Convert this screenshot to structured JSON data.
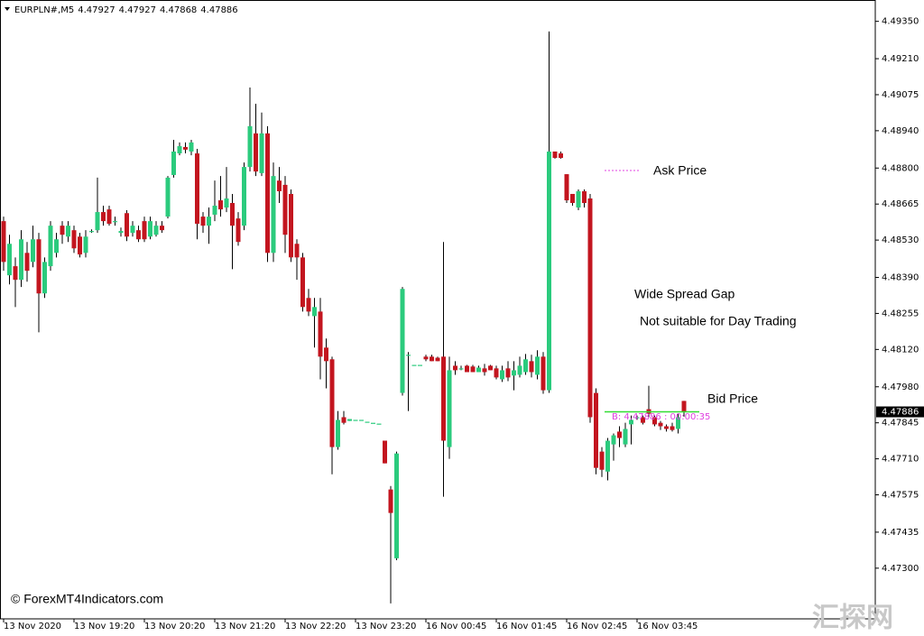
{
  "chart_data": {
    "type": "candlestick",
    "symbol": "EURPLN#,M5",
    "up_color": "#2bcb7d",
    "down_color": "#c3151f",
    "wick_color": "#000000",
    "ask_line": 4.48791,
    "ask_color": "#e040e0",
    "bid_color": "#33dd33",
    "annotations": [
      "Ask Price",
      "Wide Spread Gap",
      "Not suitable for Day Trading",
      "Bid Price"
    ],
    "timer_label": "B: 4.47886 : 00:00:35",
    "watermark": "© ForexMT4Indicators.com",
    "site_mark": "汇探网",
    "ylim": [
      4.4711,
      4.4943
    ],
    "yticks": [
      {
        "value": 4.4935,
        "label": "4.49350"
      },
      {
        "value": 4.4921,
        "label": "4.49210"
      },
      {
        "value": 4.49075,
        "label": "4.49075"
      },
      {
        "value": 4.4894,
        "label": "4.48940"
      },
      {
        "value": 4.488,
        "label": "4.48800"
      },
      {
        "value": 4.48665,
        "label": "4.48665"
      },
      {
        "value": 4.4853,
        "label": "4.48530"
      },
      {
        "value": 4.4839,
        "label": "4.48390"
      },
      {
        "value": 4.48255,
        "label": "4.48255"
      },
      {
        "value": 4.4812,
        "label": "4.48120"
      },
      {
        "value": 4.4798,
        "label": "4.47980"
      },
      {
        "value": 4.47845,
        "label": "4.47845"
      },
      {
        "value": 4.4771,
        "label": "4.47710"
      },
      {
        "value": 4.47575,
        "label": "4.47575"
      },
      {
        "value": 4.47435,
        "label": "4.47435"
      },
      {
        "value": 4.473,
        "label": "4.47300"
      }
    ],
    "categories": [
      "13 Nov 2020",
      null,
      null,
      null,
      null,
      null,
      null,
      null,
      null,
      null,
      null,
      null,
      "13 Nov 19:20",
      null,
      null,
      null,
      null,
      null,
      null,
      null,
      null,
      null,
      null,
      null,
      "13 Nov 20:20",
      null,
      null,
      null,
      null,
      null,
      null,
      null,
      null,
      null,
      null,
      null,
      "13 Nov 21:20",
      null,
      null,
      null,
      null,
      null,
      null,
      null,
      null,
      null,
      null,
      null,
      "13 Nov 22:20",
      null,
      null,
      null,
      null,
      null,
      null,
      null,
      null,
      null,
      null,
      null,
      "13 Nov 23:20",
      null,
      null,
      null,
      null,
      null,
      null,
      null,
      null,
      null,
      null,
      null,
      "16 Nov 00:45",
      null,
      null,
      null,
      null,
      null,
      null,
      null,
      null,
      null,
      null,
      null,
      "16 Nov 01:45",
      null,
      null,
      null,
      null,
      null,
      null,
      null,
      null,
      null,
      null,
      null,
      "16 Nov 02:45",
      null,
      null,
      null,
      null,
      null,
      null,
      null,
      null,
      null,
      null,
      null,
      "16 Nov 03:45",
      null,
      null,
      null,
      null,
      null,
      null,
      null,
      null
    ],
    "open": [
      4.48601,
      4.48398,
      4.48432,
      4.48381,
      4.48482,
      4.48448,
      4.48533,
      4.4833,
      4.48432,
      4.48482,
      4.48584,
      4.48543,
      4.48567,
      4.48543,
      4.48482,
      4.48564,
      4.48567,
      4.48635,
      4.48645,
      4.48601,
      4.48557,
      4.48631,
      4.48557,
      4.48567,
      4.48601,
      4.48543,
      4.4855,
      4.48584,
      4.48618,
      4.48774,
      4.48855,
      4.48879,
      4.48862,
      4.48855,
      4.48618,
      4.48584,
      4.48625,
      4.48679,
      4.48652,
      4.48669,
      4.48611,
      4.48584,
      4.48804,
      4.4893,
      4.48781,
      4.4893,
      4.48482,
      4.48753,
      4.48737,
      4.48703,
      4.48516,
      4.48465,
      4.48313,
      4.48245,
      4.48262,
      4.48127,
      4.48083,
      4.47754,
      4.47866,
      4.47852,
      4.47856,
      4.47856,
      4.47849,
      4.47845,
      4.47842,
      4.47778,
      4.47595,
      4.47337,
      4.47957,
      4.481,
      4.48062,
      4.48062,
      4.48093,
      4.48093,
      4.48089,
      4.48093,
      4.47754,
      4.48059,
      4.48049,
      4.48059,
      4.48056,
      4.48035,
      4.48049,
      4.48059,
      4.48049,
      4.48008,
      4.48049,
      4.48022,
      4.48025,
      4.48035,
      4.48076,
      4.48025,
      4.48093,
      4.47967,
      4.48862,
      4.48855,
      4.48777,
      4.48703,
      4.48652,
      4.48713,
      4.48686,
      4.47957,
      4.47737,
      4.47662,
      4.47764,
      4.47812,
      4.47764,
      4.47839,
      4.47862,
      4.47866,
      4.47896,
      4.47866,
      4.47845,
      4.47832,
      4.47832,
      4.47822,
      4.47927
    ],
    "high": [
      4.48618,
      4.4855,
      4.48465,
      4.48567,
      4.48523,
      4.48584,
      4.48557,
      4.48465,
      4.48601,
      4.48557,
      4.48601,
      4.48601,
      4.48584,
      4.48557,
      4.48567,
      4.4857,
      4.48764,
      4.48659,
      4.48659,
      4.48618,
      4.48577,
      4.48642,
      4.48601,
      4.48584,
      4.48618,
      4.48618,
      4.48601,
      4.48601,
      4.4877,
      4.48906,
      4.48896,
      4.48896,
      4.48906,
      4.48872,
      4.48635,
      4.48652,
      4.48753,
      4.4877,
      4.48804,
      4.48703,
      4.48635,
      4.48821,
      4.49102,
      4.49041,
      4.49008,
      4.48957,
      4.48821,
      4.48804,
      4.4877,
      4.4872,
      4.48533,
      4.48482,
      4.48347,
      4.48313,
      4.48313,
      4.48161,
      4.48093,
      4.47889,
      4.47889,
      4.47859,
      4.47856,
      4.47856,
      4.47849,
      4.47845,
      4.47842,
      4.47778,
      4.47608,
      4.47737,
      4.48354,
      4.4811,
      4.48062,
      4.48062,
      4.481,
      4.481,
      4.48093,
      4.48523,
      4.48093,
      4.48076,
      4.48059,
      4.48062,
      4.48062,
      4.48059,
      4.48066,
      4.48062,
      4.48059,
      4.48059,
      4.48076,
      4.48076,
      4.48093,
      4.48103,
      4.481,
      4.48117,
      4.4811,
      4.49312,
      4.48862,
      4.48862,
      4.48777,
      4.48703,
      4.4872,
      4.4872,
      4.48703,
      4.47974,
      4.47754,
      4.47788,
      4.47805,
      4.47832,
      4.47845,
      4.47872,
      4.47872,
      4.47872,
      4.47984,
      4.47872,
      4.47852,
      4.47839,
      4.47845,
      4.47879,
      4.47927
    ],
    "low": [
      4.48415,
      4.48364,
      4.48279,
      4.48354,
      4.48374,
      4.48428,
      4.48184,
      4.48313,
      4.48415,
      4.48465,
      4.48516,
      4.48523,
      4.48482,
      4.48465,
      4.48465,
      4.48557,
      4.48557,
      4.48584,
      4.48584,
      4.48584,
      4.48543,
      4.48526,
      4.48543,
      4.48523,
      4.48523,
      4.48533,
      4.48543,
      4.48557,
      4.48611,
      4.48764,
      4.48848,
      4.48855,
      4.48848,
      4.48533,
      4.48557,
      4.48516,
      4.48601,
      4.48618,
      4.48635,
      4.48421,
      4.48509,
      4.48567,
      4.48787,
      4.4877,
      4.4877,
      4.48448,
      4.48448,
      4.48669,
      4.48482,
      4.48448,
      4.48381,
      4.48262,
      4.48245,
      4.48127,
      4.48008,
      4.47974,
      4.47652,
      4.47744,
      4.47839,
      4.47852,
      4.47856,
      4.47856,
      4.47849,
      4.47845,
      4.47842,
      4.47693,
      4.47168,
      4.4733,
      4.47947,
      4.47889,
      4.48062,
      4.48062,
      4.48076,
      4.48076,
      4.48076,
      4.47568,
      4.4771,
      4.48025,
      4.48042,
      4.48035,
      4.48035,
      4.48035,
      4.48022,
      4.48042,
      4.48008,
      4.47998,
      4.48001,
      4.47967,
      4.48015,
      4.48025,
      4.48015,
      4.48008,
      4.47954,
      4.47957,
      4.48835,
      4.48835,
      4.48669,
      4.48659,
      4.48642,
      4.48652,
      4.47845,
      4.47652,
      4.47642,
      4.47629,
      4.47703,
      4.47754,
      4.47754,
      4.47764,
      4.47856,
      4.47839,
      4.47866,
      4.47832,
      4.47818,
      4.47812,
      4.47812,
      4.47805,
      4.47868
    ],
    "close": [
      4.48448,
      4.48516,
      4.48381,
      4.48533,
      4.48415,
      4.48533,
      4.4833,
      4.48448,
      4.48584,
      4.48533,
      4.4855,
      4.48584,
      4.48499,
      4.48476,
      4.48543,
      4.48564,
      4.48635,
      4.48601,
      4.48591,
      4.48601,
      4.48564,
      4.48543,
      4.48584,
      4.48533,
      4.48533,
      4.48601,
      4.48584,
      4.48567,
      4.48764,
      4.48862,
      4.48882,
      4.48869,
      4.48896,
      4.48591,
      4.48584,
      4.48618,
      4.48659,
      4.48645,
      4.48686,
      4.48584,
      4.48523,
      4.48804,
      4.48957,
      4.48787,
      4.4893,
      4.48482,
      4.4877,
      4.48713,
      4.4855,
      4.48465,
      4.48465,
      4.48279,
      4.48262,
      4.48279,
      4.48093,
      4.48076,
      4.47754,
      4.47856,
      4.47845,
      4.47859,
      4.47856,
      4.47856,
      4.47849,
      4.47845,
      4.47842,
      4.47693,
      4.47507,
      4.4773,
      4.48347,
      4.481,
      4.48062,
      4.48062,
      4.48083,
      4.48076,
      4.48076,
      4.47778,
      4.48042,
      4.48042,
      4.48049,
      4.48035,
      4.48035,
      4.48052,
      4.48035,
      4.48042,
      4.48015,
      4.48042,
      4.48015,
      4.48042,
      4.48059,
      4.48083,
      4.48035,
      4.48093,
      4.47967,
      4.48862,
      4.48838,
      4.48838,
      4.48679,
      4.48669,
      4.48713,
      4.48669,
      4.47866,
      4.47676,
      4.47669,
      4.47778,
      4.47798,
      4.47788,
      4.47822,
      4.47856,
      4.47866,
      4.47845,
      4.47879,
      4.47839,
      4.47832,
      4.47822,
      4.47818,
      4.47866,
      4.47886
    ]
  }
}
